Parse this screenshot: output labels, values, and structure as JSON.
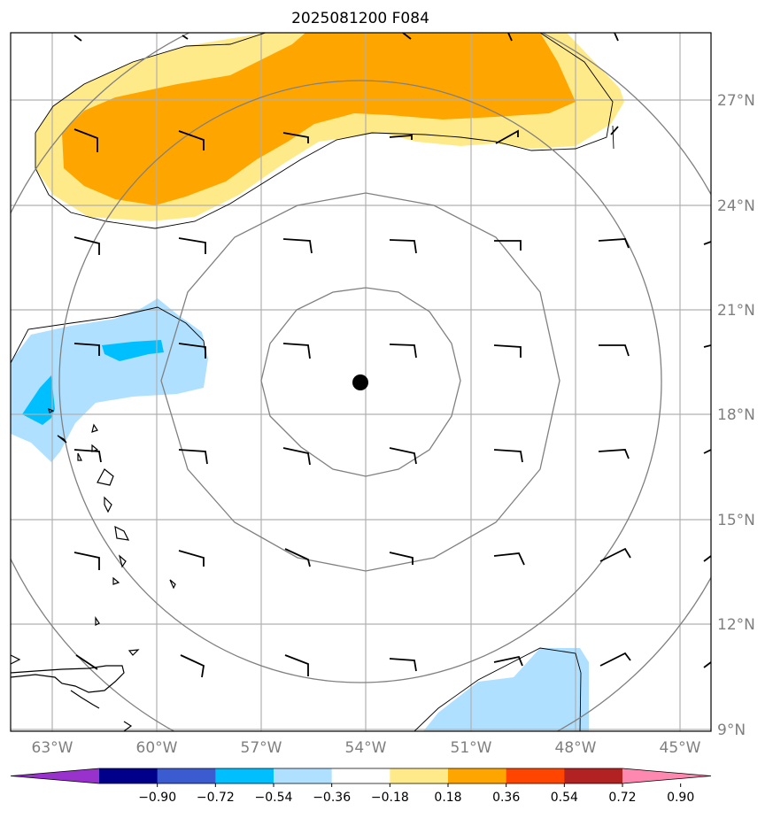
{
  "title": "2025081200 F084",
  "map": {
    "lon_range": [
      -64.0,
      -44.5
    ],
    "lat_range": [
      9.0,
      28.0
    ],
    "lon_ticks": [
      "63°W",
      "60°W",
      "57°W",
      "54°W",
      "51°W",
      "48°W",
      "45°W"
    ],
    "lat_ticks": [
      "27°N",
      "24°N",
      "21°N",
      "18°N",
      "15°N",
      "12°N",
      "9°N"
    ],
    "center_marker": {
      "lon": -54.15,
      "lat": 18.95
    },
    "gridlines": true,
    "range_rings": 4
  },
  "colorbar": {
    "orientation": "horizontal",
    "extend": "both",
    "levels": [
      "−0.90",
      "−0.72",
      "−0.54",
      "−0.36",
      "−0.18",
      "0.18",
      "0.36",
      "0.54",
      "0.72",
      "0.90"
    ],
    "colors": [
      "#9932cc",
      "#00008b",
      "#3b5bd1",
      "#00bfff",
      "#b0e0ff",
      "#ffffff",
      "#ffea8a",
      "#ffa500",
      "#ff4500",
      "#b22222",
      "#ff88b0"
    ]
  }
}
